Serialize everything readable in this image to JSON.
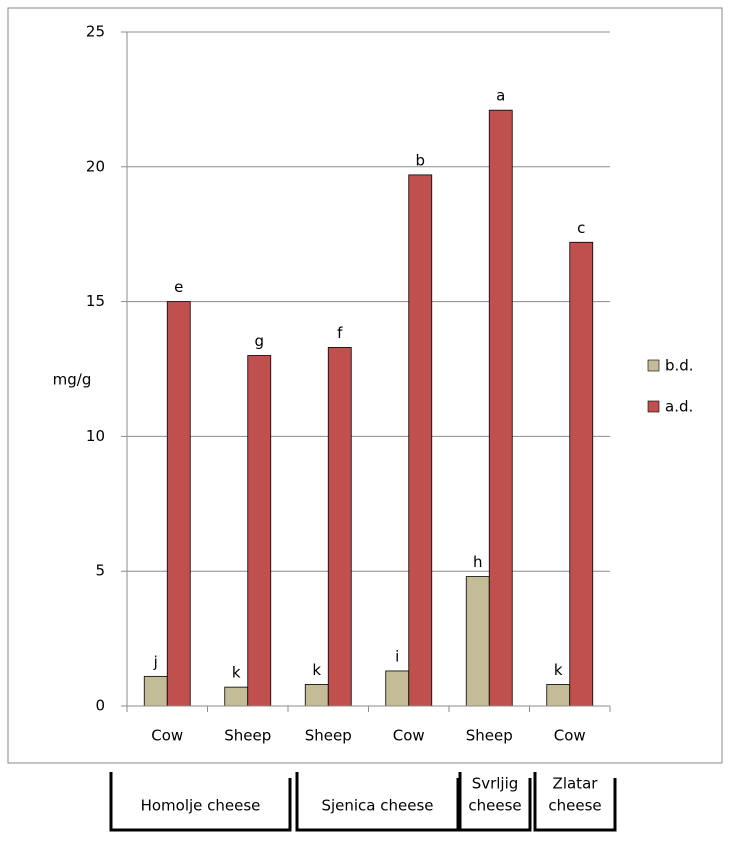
{
  "chart_data": {
    "type": "bar",
    "y_label": "mg/g",
    "categories": [
      "Cow",
      "Sheep",
      "Sheep",
      "Cow",
      "Sheep",
      "Cow"
    ],
    "series": [
      {
        "name": "b.d.",
        "color": "#c4bc96",
        "values": [
          1.1,
          0.7,
          0.8,
          1.3,
          4.8,
          0.8
        ],
        "significance_letters": [
          "j",
          "k",
          "k",
          "i",
          "h",
          "k"
        ]
      },
      {
        "name": "a.d.",
        "color": "#c0504d",
        "values": [
          15.0,
          13.0,
          13.3,
          19.7,
          22.1,
          17.2
        ],
        "significance_letters": [
          "e",
          "g",
          "f",
          "b",
          "a",
          "c"
        ]
      }
    ],
    "ylim": [
      0,
      25
    ],
    "yticks": [
      0,
      5,
      10,
      15,
      20,
      25
    ],
    "grid": true,
    "legend": "right",
    "groups": [
      {
        "lines": [
          "Homolje cheese"
        ]
      },
      {
        "lines": [
          "Sjenica cheese"
        ]
      },
      {
        "lines": [
          "Svrljig",
          "cheese"
        ]
      },
      {
        "lines": [
          "Zlatar",
          "cheese"
        ]
      }
    ]
  }
}
